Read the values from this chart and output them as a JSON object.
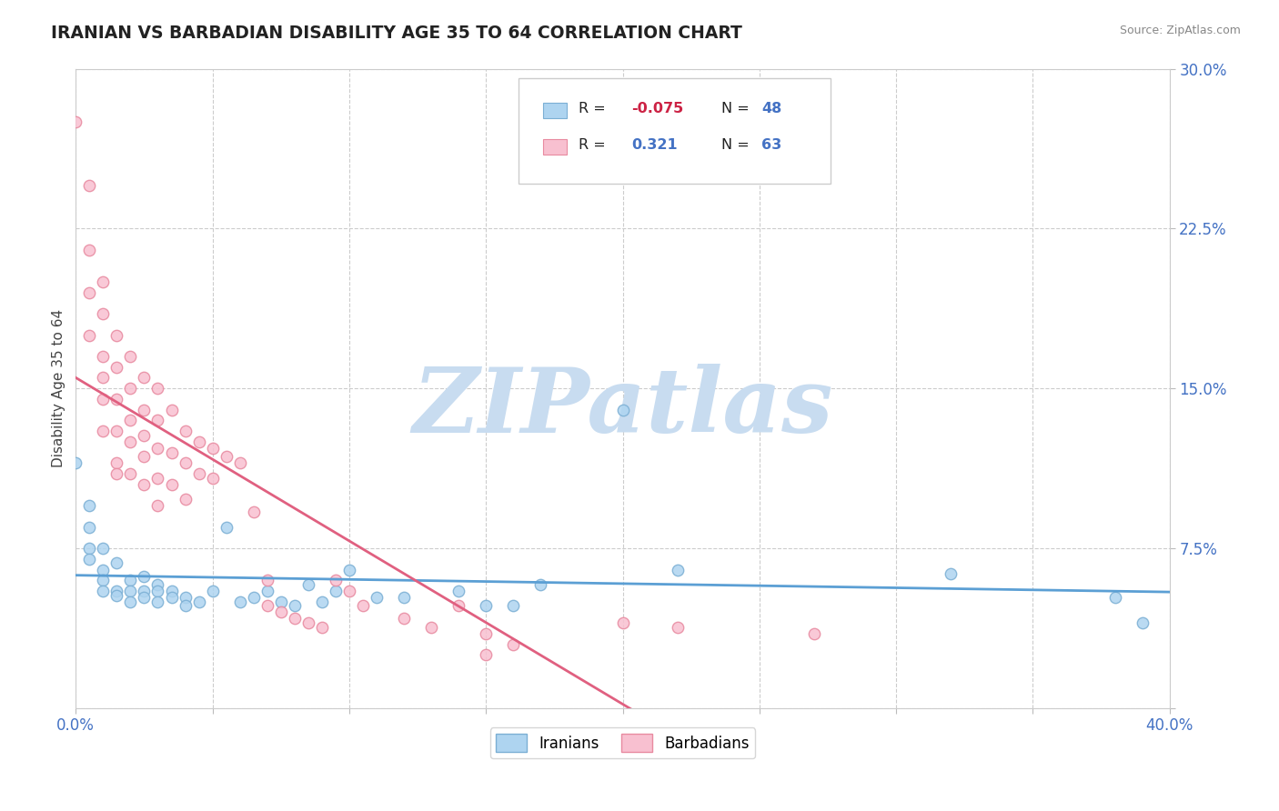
{
  "title": "IRANIAN VS BARBADIAN DISABILITY AGE 35 TO 64 CORRELATION CHART",
  "source": "Source: ZipAtlas.com",
  "ylabel": "Disability Age 35 to 64",
  "xlim": [
    0.0,
    0.4
  ],
  "ylim": [
    0.0,
    0.3
  ],
  "xticks": [
    0.0,
    0.05,
    0.1,
    0.15,
    0.2,
    0.25,
    0.3,
    0.35,
    0.4
  ],
  "yticks": [
    0.0,
    0.075,
    0.15,
    0.225,
    0.3
  ],
  "iranian_color": "#AED4F0",
  "barbadian_color": "#F8C0D0",
  "iranian_edge_color": "#7BAFD4",
  "barbadian_edge_color": "#E88AA0",
  "iranian_line_color": "#5B9FD4",
  "barbadian_line_color": "#E06080",
  "watermark_color": "#C8DCF0",
  "background_color": "#FFFFFF",
  "grid_color": "#CCCCCC",
  "iranians_scatter": [
    [
      0.0,
      0.115
    ],
    [
      0.005,
      0.095
    ],
    [
      0.005,
      0.085
    ],
    [
      0.005,
      0.075
    ],
    [
      0.005,
      0.07
    ],
    [
      0.01,
      0.065
    ],
    [
      0.01,
      0.075
    ],
    [
      0.01,
      0.06
    ],
    [
      0.01,
      0.055
    ],
    [
      0.015,
      0.068
    ],
    [
      0.015,
      0.055
    ],
    [
      0.015,
      0.053
    ],
    [
      0.02,
      0.06
    ],
    [
      0.02,
      0.055
    ],
    [
      0.02,
      0.05
    ],
    [
      0.025,
      0.062
    ],
    [
      0.025,
      0.055
    ],
    [
      0.025,
      0.052
    ],
    [
      0.03,
      0.058
    ],
    [
      0.03,
      0.055
    ],
    [
      0.03,
      0.05
    ],
    [
      0.035,
      0.055
    ],
    [
      0.035,
      0.052
    ],
    [
      0.04,
      0.052
    ],
    [
      0.04,
      0.048
    ],
    [
      0.045,
      0.05
    ],
    [
      0.05,
      0.055
    ],
    [
      0.055,
      0.085
    ],
    [
      0.06,
      0.05
    ],
    [
      0.065,
      0.052
    ],
    [
      0.07,
      0.055
    ],
    [
      0.075,
      0.05
    ],
    [
      0.08,
      0.048
    ],
    [
      0.085,
      0.058
    ],
    [
      0.09,
      0.05
    ],
    [
      0.095,
      0.055
    ],
    [
      0.1,
      0.065
    ],
    [
      0.11,
      0.052
    ],
    [
      0.12,
      0.052
    ],
    [
      0.14,
      0.055
    ],
    [
      0.15,
      0.048
    ],
    [
      0.16,
      0.048
    ],
    [
      0.17,
      0.058
    ],
    [
      0.2,
      0.14
    ],
    [
      0.22,
      0.065
    ],
    [
      0.32,
      0.063
    ],
    [
      0.38,
      0.052
    ],
    [
      0.39,
      0.04
    ]
  ],
  "barbadians_scatter": [
    [
      0.0,
      0.275
    ],
    [
      0.005,
      0.245
    ],
    [
      0.005,
      0.215
    ],
    [
      0.005,
      0.195
    ],
    [
      0.005,
      0.175
    ],
    [
      0.01,
      0.2
    ],
    [
      0.01,
      0.185
    ],
    [
      0.01,
      0.165
    ],
    [
      0.01,
      0.155
    ],
    [
      0.01,
      0.145
    ],
    [
      0.01,
      0.13
    ],
    [
      0.015,
      0.175
    ],
    [
      0.015,
      0.16
    ],
    [
      0.015,
      0.145
    ],
    [
      0.015,
      0.13
    ],
    [
      0.015,
      0.115
    ],
    [
      0.015,
      0.11
    ],
    [
      0.02,
      0.165
    ],
    [
      0.02,
      0.15
    ],
    [
      0.02,
      0.135
    ],
    [
      0.02,
      0.125
    ],
    [
      0.02,
      0.11
    ],
    [
      0.025,
      0.155
    ],
    [
      0.025,
      0.14
    ],
    [
      0.025,
      0.128
    ],
    [
      0.025,
      0.118
    ],
    [
      0.025,
      0.105
    ],
    [
      0.03,
      0.15
    ],
    [
      0.03,
      0.135
    ],
    [
      0.03,
      0.122
    ],
    [
      0.03,
      0.108
    ],
    [
      0.03,
      0.095
    ],
    [
      0.035,
      0.14
    ],
    [
      0.035,
      0.12
    ],
    [
      0.035,
      0.105
    ],
    [
      0.04,
      0.13
    ],
    [
      0.04,
      0.115
    ],
    [
      0.04,
      0.098
    ],
    [
      0.045,
      0.125
    ],
    [
      0.045,
      0.11
    ],
    [
      0.05,
      0.122
    ],
    [
      0.05,
      0.108
    ],
    [
      0.055,
      0.118
    ],
    [
      0.06,
      0.115
    ],
    [
      0.065,
      0.092
    ],
    [
      0.07,
      0.06
    ],
    [
      0.07,
      0.048
    ],
    [
      0.075,
      0.045
    ],
    [
      0.08,
      0.042
    ],
    [
      0.085,
      0.04
    ],
    [
      0.09,
      0.038
    ],
    [
      0.095,
      0.06
    ],
    [
      0.1,
      0.055
    ],
    [
      0.105,
      0.048
    ],
    [
      0.12,
      0.042
    ],
    [
      0.13,
      0.038
    ],
    [
      0.14,
      0.048
    ],
    [
      0.15,
      0.035
    ],
    [
      0.15,
      0.025
    ],
    [
      0.16,
      0.03
    ],
    [
      0.2,
      0.04
    ],
    [
      0.22,
      0.038
    ],
    [
      0.27,
      0.035
    ]
  ]
}
